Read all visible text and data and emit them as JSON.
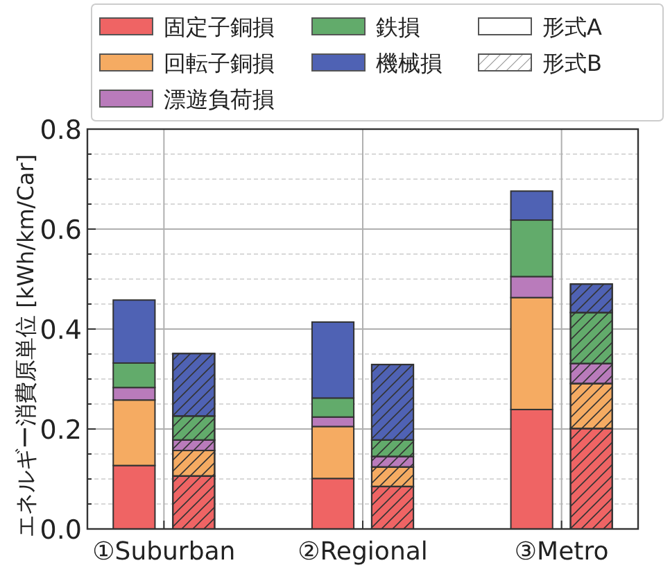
{
  "chart_data": {
    "type": "bar",
    "stacked": true,
    "ylabel": "エネルギー消費原単位 [kWh/km/Car]",
    "categories": [
      null,
      null,
      null,
      null,
      null,
      null
    ],
    "annotations": [
      "①Suburban",
      "②Regional",
      "③Metro"
    ],
    "series": [
      {
        "name": "固定子銅損",
        "color": "#ef6464",
        "values": [
          0.127,
          0.106,
          0.101,
          0.085,
          0.239,
          0.201
        ]
      },
      {
        "name": "回転子銅損",
        "color": "#f5ab62",
        "values": [
          0.131,
          0.051,
          0.104,
          0.039,
          0.224,
          0.09
        ]
      },
      {
        "name": "漂遊負荷損",
        "color": "#b97bbb",
        "values": [
          0.025,
          0.021,
          0.019,
          0.021,
          0.042,
          0.04
        ]
      },
      {
        "name": "鉄損",
        "color": "#62ab6b",
        "values": [
          0.049,
          0.048,
          0.038,
          0.033,
          0.113,
          0.102
        ]
      },
      {
        "name": "機械損",
        "color": "#4f62b4",
        "values": [
          0.126,
          0.125,
          0.152,
          0.151,
          0.058,
          0.057
        ]
      },
      {
        "name": "形式A",
        "color": "#ffffff",
        "values": [
          null,
          null,
          null,
          null,
          null,
          null
        ]
      },
      {
        "name": "形式B",
        "color": "#ffffff",
        "values": [
          null,
          null,
          null,
          null,
          null,
          null
        ]
      }
    ],
    "ylim": [
      0,
      0.8
    ],
    "yticks": [
      {
        "value": 0,
        "label": "0.0"
      },
      {
        "value": 0.05,
        "label": null
      },
      {
        "value": 0.1,
        "label": null
      },
      {
        "value": 0.15,
        "label": null
      },
      0.2,
      {
        "value": 0.25,
        "label": null
      },
      {
        "value": 0.3,
        "label": null
      },
      {
        "value": 0.35,
        "label": null
      },
      0.4,
      {
        "value": 0.45,
        "label": null
      },
      {
        "value": 0.5,
        "label": null
      },
      {
        "value": 0.55,
        "label": null
      },
      0.6,
      {
        "value": 0.65,
        "label": null
      },
      {
        "value": 0.7,
        "label": null
      },
      {
        "value": 0.75,
        "label": null
      },
      0.8
    ],
    "grid": true,
    "legend": "top"
  }
}
